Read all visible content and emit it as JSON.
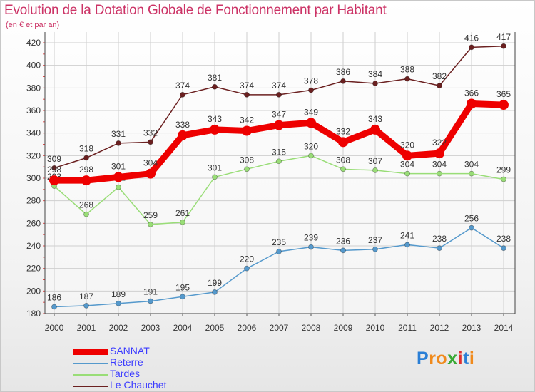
{
  "header": {
    "title": "Evolution de la Dotation Globale de Fonctionnement par Habitant",
    "subtitle": "(en € et par an)"
  },
  "chart_data": {
    "type": "line",
    "title": "Evolution de la Dotation Globale de Fonctionnement par Habitant",
    "ylabel": "(en € et par an)",
    "xlabel": "",
    "x": [
      2000,
      2001,
      2002,
      2003,
      2004,
      2005,
      2006,
      2007,
      2008,
      2009,
      2010,
      2011,
      2012,
      2013,
      2014
    ],
    "ylim": [
      180,
      420
    ],
    "yticks": [
      180,
      200,
      220,
      240,
      260,
      280,
      300,
      320,
      340,
      360,
      380,
      400,
      420
    ],
    "grid": true,
    "legend_position": "bottom-left",
    "series": [
      {
        "name": "Le Chauchet",
        "color": "#6b2020",
        "values": [
          309,
          318,
          331,
          332,
          374,
          381,
          374,
          374,
          378,
          386,
          384,
          388,
          382,
          416,
          417
        ]
      },
      {
        "name": "Tardes",
        "color": "#99dd77",
        "values": [
          293,
          268,
          292,
          259,
          261,
          301,
          308,
          315,
          320,
          308,
          307,
          304,
          304,
          304,
          299
        ]
      },
      {
        "name": "Reterre",
        "color": "#5599cc",
        "values": [
          186,
          187,
          189,
          191,
          195,
          199,
          220,
          235,
          239,
          236,
          237,
          241,
          238,
          256,
          238
        ]
      },
      {
        "name": "SANNAT",
        "color": "#ee0000",
        "values": [
          298,
          298,
          301,
          304,
          338,
          343,
          342,
          347,
          349,
          332,
          343,
          320,
          322,
          366,
          365
        ]
      }
    ],
    "legend_order": [
      "SANNAT",
      "Reterre",
      "Tardes",
      "Le Chauchet"
    ]
  },
  "brand": {
    "text": "Proxiti",
    "letters": [
      "P",
      "r",
      "o",
      "x",
      "i",
      "t",
      "i"
    ],
    "colors": [
      "#2a7fd6",
      "#f08a1c",
      "#f08a1c",
      "#39a935",
      "#e03030",
      "#2a7fd6",
      "#f08a1c"
    ]
  }
}
